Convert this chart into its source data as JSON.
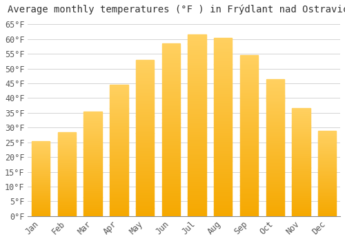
{
  "title": "Average monthly temperatures (°F ) in Frýdlant nad Ostravicí-",
  "months": [
    "Jan",
    "Feb",
    "Mar",
    "Apr",
    "May",
    "Jun",
    "Jul",
    "Aug",
    "Sep",
    "Oct",
    "Nov",
    "Dec"
  ],
  "values": [
    25.5,
    28.5,
    35.5,
    44.5,
    53.0,
    58.5,
    61.5,
    60.5,
    54.5,
    46.5,
    36.5,
    29.0
  ],
  "bar_color_bottom": "#F5A800",
  "bar_color_top": "#FFD060",
  "background_color": "#ffffff",
  "grid_color": "#cccccc",
  "yticks": [
    0,
    5,
    10,
    15,
    20,
    25,
    30,
    35,
    40,
    45,
    50,
    55,
    60,
    65
  ],
  "ylim": [
    0,
    67
  ],
  "title_fontsize": 10,
  "tick_fontsize": 8.5,
  "font_family": "monospace"
}
